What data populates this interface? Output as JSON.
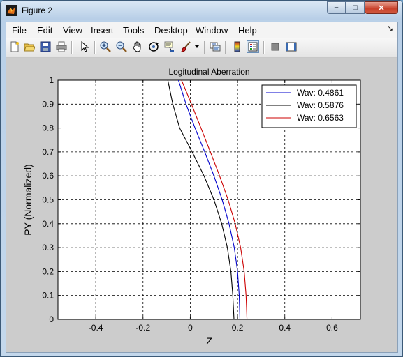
{
  "window": {
    "title": "Figure 2",
    "controls": {
      "minimize": "–",
      "maximize": "□",
      "close": "✕"
    }
  },
  "menubar": {
    "items": [
      "File",
      "Edit",
      "View",
      "Insert",
      "Tools",
      "Desktop",
      "Window",
      "Help"
    ],
    "dock_arrow": "↘"
  },
  "toolbar": {
    "icons": [
      "new-figure-icon",
      "open-file-icon",
      "save-figure-icon",
      "print-figure-icon",
      "edit-plot-arrow-icon",
      "zoom-in-icon",
      "zoom-out-icon",
      "pan-hand-icon",
      "rotate-3d-icon",
      "data-cursor-icon",
      "brush-icon",
      "brush-dropdown-icon",
      "link-plot-icon",
      "insert-colorbar-icon",
      "insert-legend-icon",
      "hide-plot-tools-icon",
      "show-plot-tools-icon"
    ]
  },
  "chart_data": {
    "type": "line",
    "title": "Logitudinal Aberration",
    "xlabel": "Z",
    "ylabel": "PY (Normalized)",
    "xlim": [
      -0.56,
      0.72
    ],
    "ylim": [
      0,
      1
    ],
    "xticks": [
      "-0.4",
      "-0.2",
      "0",
      "0.2",
      "0.4",
      "0.6"
    ],
    "xtick_values": [
      -0.4,
      -0.2,
      0,
      0.2,
      0.4,
      0.6
    ],
    "yticks": [
      "0",
      "0.1",
      "0.2",
      "0.3",
      "0.4",
      "0.5",
      "0.6",
      "0.7",
      "0.8",
      "0.9",
      "1"
    ],
    "ytick_values": [
      0,
      0.1,
      0.2,
      0.3,
      0.4,
      0.5,
      0.6,
      0.7,
      0.8,
      0.9,
      1
    ],
    "grid": true,
    "legend_position": "top-right",
    "series": [
      {
        "name": "Wav: 0.4861",
        "color": "#0000cc",
        "x": [
          0.21,
          0.207,
          0.2,
          0.186,
          0.164,
          0.135,
          0.1,
          0.061,
          0.02,
          -0.018,
          -0.05
        ],
        "y": [
          0,
          0.1,
          0.2,
          0.3,
          0.4,
          0.5,
          0.6,
          0.7,
          0.8,
          0.9,
          1
        ]
      },
      {
        "name": "Wav: 0.5876",
        "color": "#000000",
        "x": [
          0.185,
          0.18,
          0.172,
          0.157,
          0.133,
          0.1,
          0.058,
          0.008,
          -0.045,
          -0.074,
          -0.095
        ],
        "y": [
          0,
          0.1,
          0.2,
          0.3,
          0.4,
          0.5,
          0.6,
          0.7,
          0.8,
          0.9,
          1
        ]
      },
      {
        "name": "Wav: 0.6563",
        "color": "#cc0000",
        "x": [
          0.24,
          0.236,
          0.228,
          0.213,
          0.19,
          0.16,
          0.124,
          0.085,
          0.045,
          0.005,
          -0.037
        ],
        "y": [
          0,
          0.1,
          0.2,
          0.3,
          0.4,
          0.5,
          0.6,
          0.7,
          0.8,
          0.9,
          1
        ]
      }
    ]
  }
}
